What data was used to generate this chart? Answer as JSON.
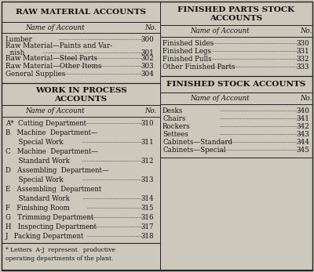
{
  "bg_color": "#ccc8bc",
  "border_color": "#222222",
  "text_color": "#111111",
  "figw": 4.0,
  "figh": 3.47,
  "dpi": 100,
  "left": {
    "raw_title": "RAW MATERIAL ACCOUNTS",
    "wip_title1": "WORK IN PROCESS",
    "wip_title2": "ACCOUNTS",
    "subhdr": "Name of Account",
    "subhdr_no": "No.",
    "raw_rows": [
      [
        "Lumber",
        "300"
      ],
      [
        "Raw Material—Paints and Var-\n  nish",
        "301"
      ],
      [
        "Raw Material—Steel Parts",
        "302"
      ],
      [
        "Raw Material—Other Items",
        "303"
      ],
      [
        "General Supplies",
        "304"
      ]
    ],
    "wip_rows": [
      [
        "A*  Cutting Department",
        "310",
        false
      ],
      [
        "B   Machine  Department—",
        "",
        false
      ],
      [
        "      Special Work",
        "311",
        true
      ],
      [
        "C   Machine  Department—",
        "",
        false
      ],
      [
        "      Standard Work",
        "312",
        true
      ],
      [
        "D   Assembling  Department—",
        "",
        false
      ],
      [
        "      Special Work",
        "313",
        true
      ],
      [
        "E   Assembling  Department",
        "",
        false
      ],
      [
        "      Standard Work",
        "314",
        true
      ],
      [
        "F   Finishing Room",
        "315",
        false
      ],
      [
        "G   Trimming Department",
        "316",
        false
      ],
      [
        "H   Inspecting Department",
        "317",
        false
      ],
      [
        "J   Packing Department",
        "318",
        false
      ]
    ],
    "footnote1": "* Letters  A-J  represent   productive",
    "footnote2": "operating departments of the plant."
  },
  "right": {
    "fps_title1": "FINISHED PARTS STOCK",
    "fps_title2": "ACCOUNTS",
    "fsa_title": "FINISHED STOCK ACCOUNTS",
    "subhdr": "Name of Account",
    "subhdr_no": "No.",
    "fps_rows": [
      [
        "Finished Sides",
        "330"
      ],
      [
        "Finished Legs",
        "331"
      ],
      [
        "Finished Pulls",
        "332"
      ],
      [
        "Other Finished Parts",
        "333"
      ]
    ],
    "fsa_rows": [
      [
        "Desks",
        "340"
      ],
      [
        "Chairs",
        "341"
      ],
      [
        "Rockers",
        "342"
      ],
      [
        "Settees",
        "343"
      ],
      [
        "Cabinets—Standard",
        "344"
      ],
      [
        "Cabinets—Special",
        "345"
      ]
    ]
  }
}
